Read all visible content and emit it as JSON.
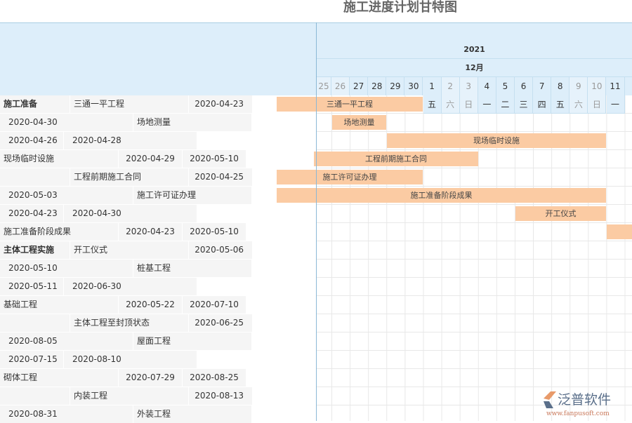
{
  "title": "施工进度计划甘特图",
  "timeline": {
    "year": "2021",
    "month": "12月",
    "days": [
      {
        "d": "25",
        "we": true
      },
      {
        "d": "26",
        "we": true
      },
      {
        "d": "27"
      },
      {
        "d": "28"
      },
      {
        "d": "29"
      },
      {
        "d": "30"
      },
      {
        "d": "1",
        "w": "五"
      },
      {
        "d": "2",
        "w": "六",
        "we": true
      },
      {
        "d": "3",
        "w": "日",
        "we": true
      },
      {
        "d": "4",
        "w": "一"
      },
      {
        "d": "5",
        "w": "二"
      },
      {
        "d": "6",
        "w": "三"
      },
      {
        "d": "7",
        "w": "四"
      },
      {
        "d": "8",
        "w": "五"
      },
      {
        "d": "9",
        "w": "六",
        "we": true
      },
      {
        "d": "10",
        "w": "日",
        "we": true
      },
      {
        "d": "11",
        "w": "一"
      }
    ]
  },
  "table_rows": [
    [
      "施工准备",
      "三通一平工程",
      "2020-04-23"
    ],
    [
      "2020-04-30",
      "场地测量"
    ],
    [
      "2020-04-26",
      "2020-04-28"
    ],
    [
      "现场临时设施",
      "2020-04-29",
      "2020-05-10"
    ],
    [
      "",
      "工程前期施工合同",
      "2020-04-25"
    ],
    [
      "2020-05-03",
      "施工许可证办理"
    ],
    [
      "2020-04-23",
      "2020-04-30"
    ],
    [
      "施工准备阶段成果",
      "2020-04-23",
      "2020-05-10"
    ],
    [
      "主体工程实施",
      "开工仪式",
      "2020-05-06"
    ],
    [
      "2020-05-10",
      "桩基工程"
    ],
    [
      "2020-05-11",
      "2020-06-30"
    ],
    [
      "基础工程",
      "2020-05-22",
      "2020-07-10"
    ],
    [
      "",
      "主体工程至封顶状态",
      "2020-06-25"
    ],
    [
      "2020-08-05",
      "屋面工程"
    ],
    [
      "2020-07-15",
      "2020-08-10"
    ],
    [
      "砌体工程",
      "2020-07-29",
      "2020-08-25"
    ],
    [
      "",
      "内装工程",
      "2020-08-13"
    ],
    [
      "2020-08-31",
      "外装工程"
    ]
  ],
  "bars": [
    {
      "label": "三通一平工程",
      "row": 0
    },
    {
      "label": "场地测量",
      "row": 1
    },
    {
      "label": "现场临时设施",
      "row": 2
    },
    {
      "label": "工程前期施工合同",
      "row": 3
    },
    {
      "label": "施工许可证办理",
      "row": 4
    },
    {
      "label": "施工准备阶段成果",
      "row": 5
    },
    {
      "label": "开工仪式",
      "row": 6
    },
    {
      "label": "",
      "row": 7
    }
  ],
  "bar_color": "#fbcba3",
  "watermark": {
    "brand": "泛普软件",
    "url": "www.fanpusoft.com"
  }
}
